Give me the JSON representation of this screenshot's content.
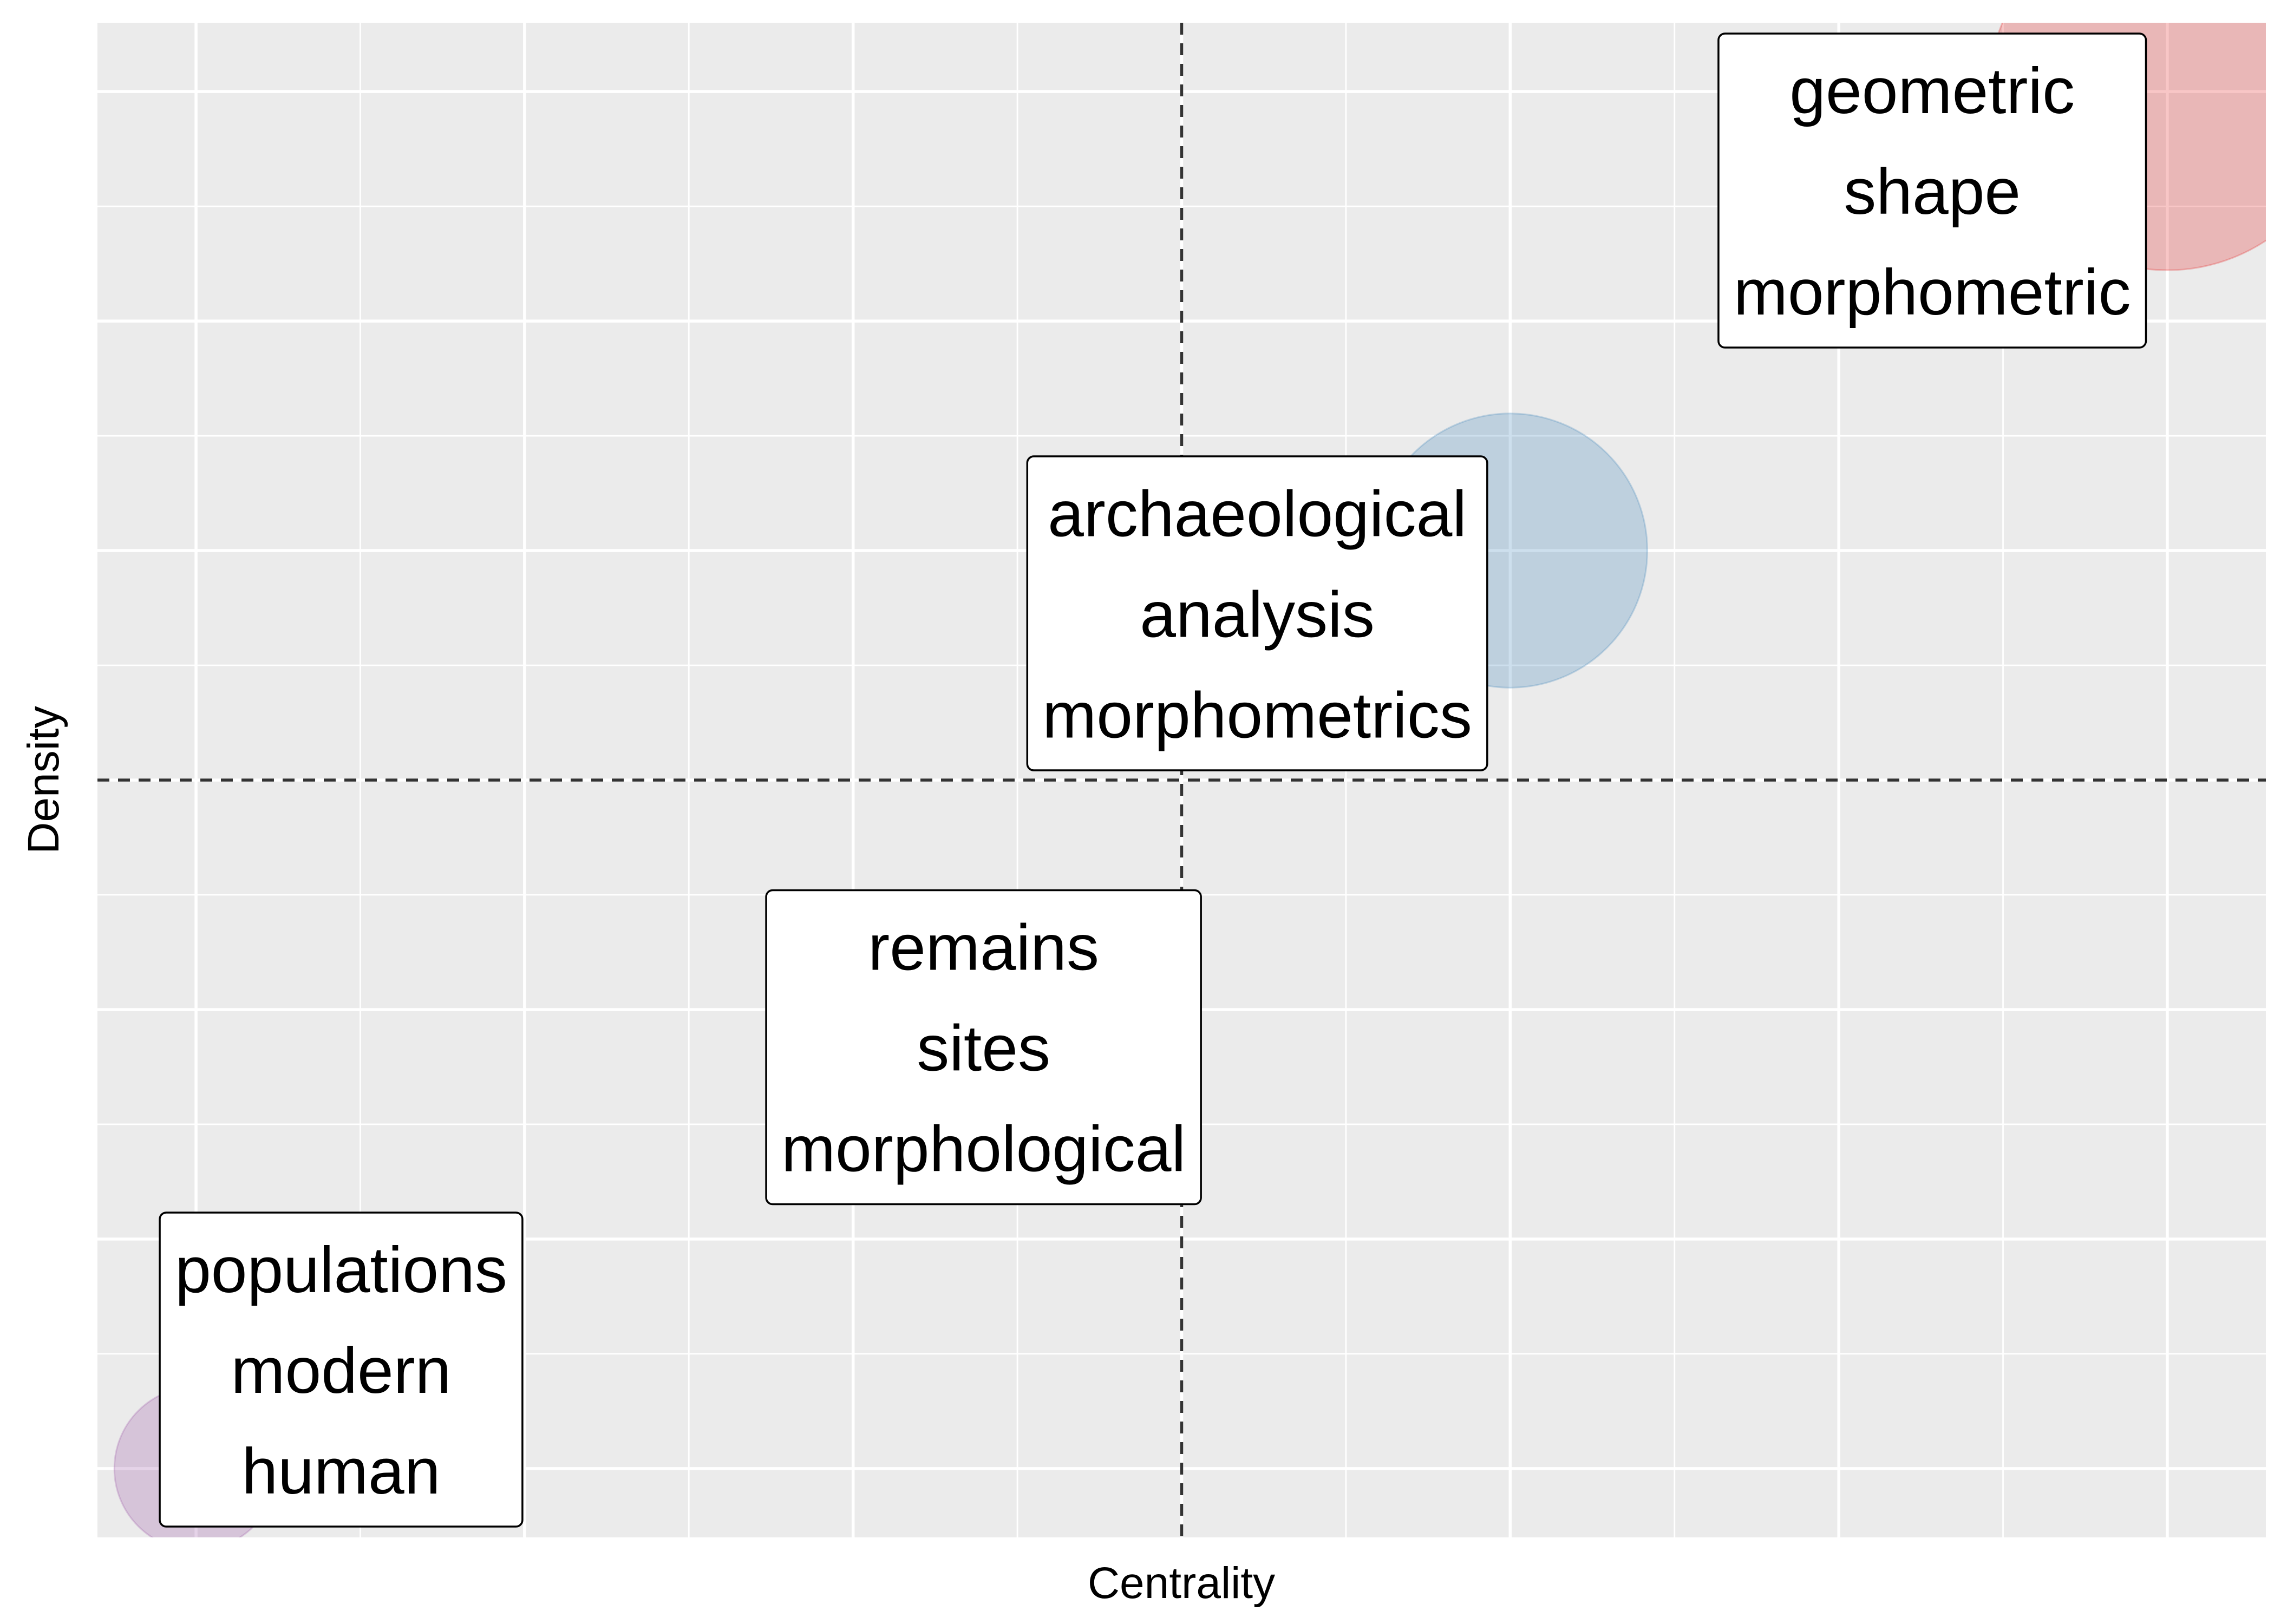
{
  "chart_data": {
    "type": "scatter",
    "title": "",
    "xlabel": "Centrality",
    "ylabel": "Density",
    "xlim": [
      -0.15,
      3.15
    ],
    "ylim": [
      -0.15,
      3.15
    ],
    "grid": true,
    "x_ticks": [
      0,
      0.5,
      1,
      1.5,
      2,
      2.5,
      3
    ],
    "y_ticks": [
      0,
      0.5,
      1,
      1.5,
      2,
      2.5,
      3
    ],
    "reference_lines": {
      "x": 1.5,
      "y": 1.5
    },
    "clusters": [
      {
        "x": 3,
        "y": 3,
        "size": 1.0,
        "color": "#E41A1C",
        "words": [
          "geometric",
          "shape",
          "morphometric"
        ]
      },
      {
        "x": 2,
        "y": 2,
        "size": 0.5,
        "color": "#377EB8",
        "words": [
          "archaeological",
          "analysis",
          "morphometrics"
        ]
      },
      {
        "x": 1,
        "y": 1,
        "size": 0.1,
        "color": "#4DAF4A",
        "words": [
          "remains",
          "sites",
          "morphological"
        ]
      },
      {
        "x": 0,
        "y": 0,
        "size": 0.1,
        "color": "#984EA3",
        "words": [
          "populations",
          "modern",
          "human"
        ]
      }
    ]
  }
}
